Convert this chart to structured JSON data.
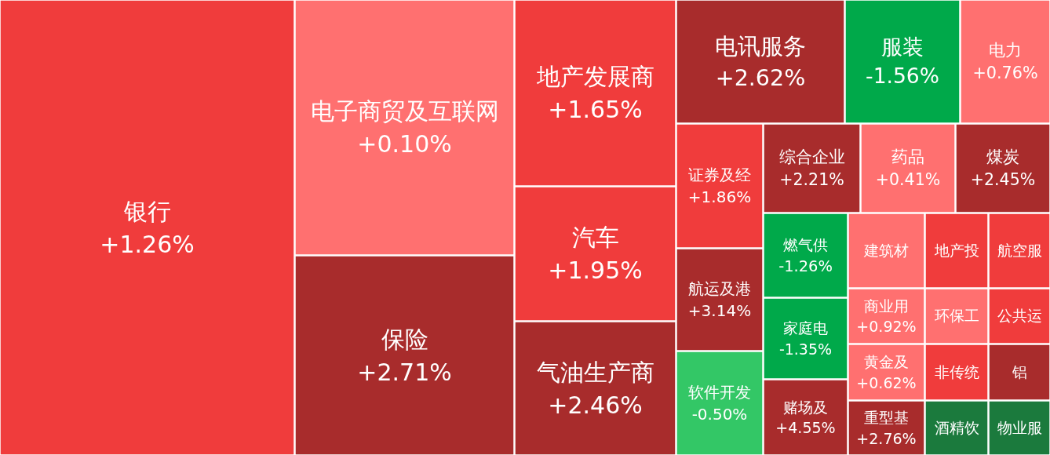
{
  "chart_data": {
    "type": "other",
    "categories": [
      "银行",
      "电子商贸及互联网",
      "保险",
      "地产发展商",
      "汽车",
      "气油生产商",
      "电讯服务",
      "服装",
      "电力",
      "证券及经",
      "综合企业",
      "药品",
      "煤炭",
      "航运及港",
      "软件开发",
      "燃气供",
      "家庭电",
      "赌场及",
      "建筑材",
      "地产投",
      "航空服",
      "商业用",
      "环保工",
      "公共运",
      "黄金及",
      "非传统",
      "铝",
      "重型基",
      "酒精饮",
      "物业服"
    ],
    "values": [
      1.26,
      0.1,
      2.71,
      1.65,
      1.95,
      2.46,
      2.62,
      -1.56,
      0.76,
      1.86,
      2.21,
      0.41,
      2.45,
      3.14,
      -0.5,
      -1.26,
      -1.35,
      4.55,
      null,
      null,
      null,
      0.92,
      null,
      null,
      0.62,
      null,
      null,
      2.76,
      null,
      null
    ],
    "value_labels": [
      "+1.26%",
      "+0.10%",
      "+2.71%",
      "+1.65%",
      "+1.95%",
      "+2.46%",
      "+2.62%",
      "-1.56%",
      "+0.76%",
      "+1.86%",
      "+2.21%",
      "+0.41%",
      "+2.45%",
      "+3.14%",
      "-0.50%",
      "-1.26%",
      "-1.35%",
      "+4.55%",
      null,
      null,
      null,
      "+0.92%",
      null,
      null,
      "+0.62%",
      null,
      null,
      "+2.76%",
      null,
      null
    ],
    "colors": [
      "#f03c3c",
      "#ff7070",
      "#a82c2c",
      "#f03c3c",
      "#f03c3c",
      "#a82c2c",
      "#a82c2c",
      "#00a94a",
      "#ff7070",
      "#f03c3c",
      "#a82c2c",
      "#ff7070",
      "#a82c2c",
      "#a82c2c",
      "#33c766",
      "#00a94a",
      "#00a94a",
      "#a82c2c",
      "#ff7070",
      "#f03c3c",
      "#f03c3c",
      "#ff7070",
      "#ff7070",
      "#f03c3c",
      "#ff7070",
      "#f03c3c",
      "#a82c2c",
      "#a82c2c",
      "#1b7a3d",
      "#1b7a3d"
    ]
  }
}
